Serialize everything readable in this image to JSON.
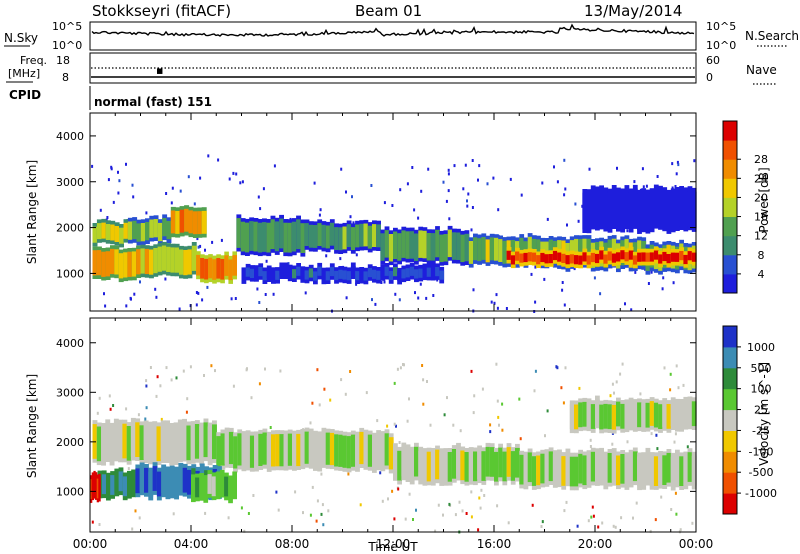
{
  "header": {
    "station": "Stokkseyri (fitACF)",
    "beam": "Beam 01",
    "date": "13/May/2014"
  },
  "strips": {
    "nsky_label": "N.Sky",
    "nsky_ticks": [
      "10^5",
      "10^0"
    ],
    "nsearch_label": "N.Search",
    "nsearch_ticks": [
      "10^5",
      "10^0"
    ],
    "freq_label_line1": "Freq.",
    "freq_label_line2": "[MHz]",
    "freq_ticks": [
      "18",
      "8"
    ],
    "nave_label": "Nave",
    "nave_ticks": [
      "60",
      "0"
    ],
    "cpid_label": "CPID",
    "cpid_value": "normal (fast) 151"
  },
  "chart_data": [
    {
      "type": "heatmap",
      "name": "power-panel",
      "ylabel": "Slant Range [km]",
      "xlabel": "",
      "xlim": [
        0,
        24
      ],
      "ylim": [
        180,
        4500
      ],
      "yticks": [
        1000,
        2000,
        3000,
        4000
      ],
      "ytick_labels": [
        "1000",
        "2000",
        "3000",
        "4000"
      ],
      "colorbar": {
        "label": "Power [dB]",
        "range": [
          0,
          32
        ],
        "ticks": [
          "4",
          "8",
          "12",
          "16",
          "20",
          "24",
          "28"
        ],
        "colors": [
          "#1e1edc",
          "#2850d2",
          "#3c8c6e",
          "#50a050",
          "#b4d228",
          "#f0c800",
          "#f08c00",
          "#f05000",
          "#dc0000"
        ]
      },
      "bands": [
        {
          "t": [
            0.1,
            1.5
          ],
          "range": [
            1700,
            2050
          ],
          "level": 5
        },
        {
          "t": [
            1.5,
            3.2
          ],
          "range": [
            1750,
            2150
          ],
          "level": 4
        },
        {
          "t": [
            3.2,
            4.6
          ],
          "range": [
            1850,
            2350
          ],
          "level": 6
        },
        {
          "t": [
            0.1,
            2.0
          ],
          "range": [
            950,
            1500
          ],
          "level": 6
        },
        {
          "t": [
            2.0,
            4.2
          ],
          "range": [
            1000,
            1550
          ],
          "level": 5
        },
        {
          "t": [
            4.2,
            5.8
          ],
          "range": [
            900,
            1350
          ],
          "level": 7
        },
        {
          "t": [
            5.8,
            8.5
          ],
          "range": [
            1500,
            2150
          ],
          "level": 3
        },
        {
          "t": [
            8.5,
            11.5
          ],
          "range": [
            1550,
            2050
          ],
          "level": 3
        },
        {
          "t": [
            11.5,
            15.0
          ],
          "range": [
            1300,
            1900
          ],
          "level": 3
        },
        {
          "t": [
            15.0,
            18.5
          ],
          "range": [
            1250,
            1750
          ],
          "level": 4
        },
        {
          "t": [
            18.5,
            22.0
          ],
          "range": [
            1150,
            1700
          ],
          "level": 4
        },
        {
          "t": [
            22.0,
            24.0
          ],
          "range": [
            1100,
            1600
          ],
          "level": 4
        },
        {
          "t": [
            16.5,
            24.0
          ],
          "range": [
            1250,
            1450
          ],
          "level": 8
        },
        {
          "t": [
            19.5,
            24.0
          ],
          "range": [
            2000,
            2800
          ],
          "level": 0
        },
        {
          "t": [
            6.0,
            14.0
          ],
          "range": [
            900,
            1100
          ],
          "level": 1
        }
      ]
    },
    {
      "type": "heatmap",
      "name": "velocity-panel",
      "ylabel": "Slant Range [km]",
      "xlabel": "Time UT",
      "xlim": [
        0,
        24
      ],
      "ylim": [
        180,
        4500
      ],
      "xticks": [
        0,
        4,
        8,
        12,
        16,
        20,
        24
      ],
      "xtick_labels": [
        "00:00",
        "04:00",
        "08:00",
        "12:00",
        "16:00",
        "20:00",
        "00:00"
      ],
      "yticks": [
        1000,
        2000,
        3000,
        4000
      ],
      "ytick_labels": [
        "1000",
        "2000",
        "3000",
        "4000"
      ],
      "colorbar": {
        "label": "Velocity [m s^-1]",
        "ticks": [
          "1000",
          "500",
          "100",
          "25",
          "-25",
          "-100",
          "-500",
          "-1000"
        ],
        "colors": [
          "#1e32c8",
          "#3c8cb4",
          "#2e8b3a",
          "#5ac832",
          "#c8c8c0",
          "#f0c800",
          "#f08c00",
          "#f05000",
          "#dc0000"
        ]
      },
      "bands": [
        {
          "t": [
            0.1,
            5.0
          ],
          "range": [
            1650,
            2350
          ],
          "level": 4
        },
        {
          "t": [
            5.0,
            12.0
          ],
          "range": [
            1500,
            2150
          ],
          "level": 4
        },
        {
          "t": [
            12.0,
            17.0
          ],
          "range": [
            1250,
            1850
          ],
          "level": 4
        },
        {
          "t": [
            17.0,
            24.0
          ],
          "range": [
            1150,
            1750
          ],
          "level": 4
        },
        {
          "t": [
            19.0,
            24.0
          ],
          "range": [
            2300,
            2800
          ],
          "level": 4
        },
        {
          "t": [
            0.3,
            1.8
          ],
          "range": [
            950,
            1350
          ],
          "level": 2
        },
        {
          "t": [
            1.8,
            5.2
          ],
          "range": [
            950,
            1450
          ],
          "level": 1
        },
        {
          "t": [
            4.0,
            5.8
          ],
          "range": [
            900,
            1300
          ],
          "level": 3
        },
        {
          "t": [
            0.0,
            0.4
          ],
          "range": [
            900,
            1300
          ],
          "level": 8
        }
      ]
    }
  ]
}
